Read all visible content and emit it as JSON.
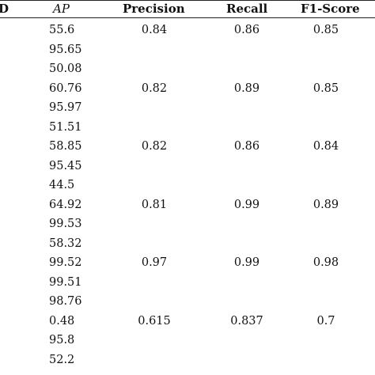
{
  "table": {
    "headers": {
      "id": "D",
      "ap": "AP",
      "precision": "Precision",
      "recall": "Recall",
      "f1": "F1-Score"
    },
    "rows": [
      {
        "ap": "55.6",
        "precision": "0.84",
        "recall": "0.86",
        "f1": "0.85"
      },
      {
        "ap": "95.65",
        "precision": "",
        "recall": "",
        "f1": ""
      },
      {
        "ap": "50.08",
        "precision": "",
        "recall": "",
        "f1": ""
      },
      {
        "ap": "60.76",
        "precision": "0.82",
        "recall": "0.89",
        "f1": "0.85"
      },
      {
        "ap": "95.97",
        "precision": "",
        "recall": "",
        "f1": ""
      },
      {
        "ap": "51.51",
        "precision": "",
        "recall": "",
        "f1": ""
      },
      {
        "ap": "58.85",
        "precision": "0.82",
        "recall": "0.86",
        "f1": "0.84"
      },
      {
        "ap": "95.45",
        "precision": "",
        "recall": "",
        "f1": ""
      },
      {
        "ap": "44.5",
        "precision": "",
        "recall": "",
        "f1": ""
      },
      {
        "ap": "64.92",
        "precision": "0.81",
        "recall": "0.99",
        "f1": "0.89"
      },
      {
        "ap": "99.53",
        "precision": "",
        "recall": "",
        "f1": ""
      },
      {
        "ap": "58.32",
        "precision": "",
        "recall": "",
        "f1": ""
      },
      {
        "ap": "99.52",
        "precision": "0.97",
        "recall": "0.99",
        "f1": "0.98"
      },
      {
        "ap": "99.51",
        "precision": "",
        "recall": "",
        "f1": ""
      },
      {
        "ap": "98.76",
        "precision": "",
        "recall": "",
        "f1": ""
      },
      {
        "ap": "0.48",
        "precision": "0.615",
        "recall": "0.837",
        "f1": "0.7"
      },
      {
        "ap": "95.8",
        "precision": "",
        "recall": "",
        "f1": ""
      },
      {
        "ap": "52.2",
        "precision": "",
        "recall": "",
        "f1": ""
      }
    ]
  }
}
